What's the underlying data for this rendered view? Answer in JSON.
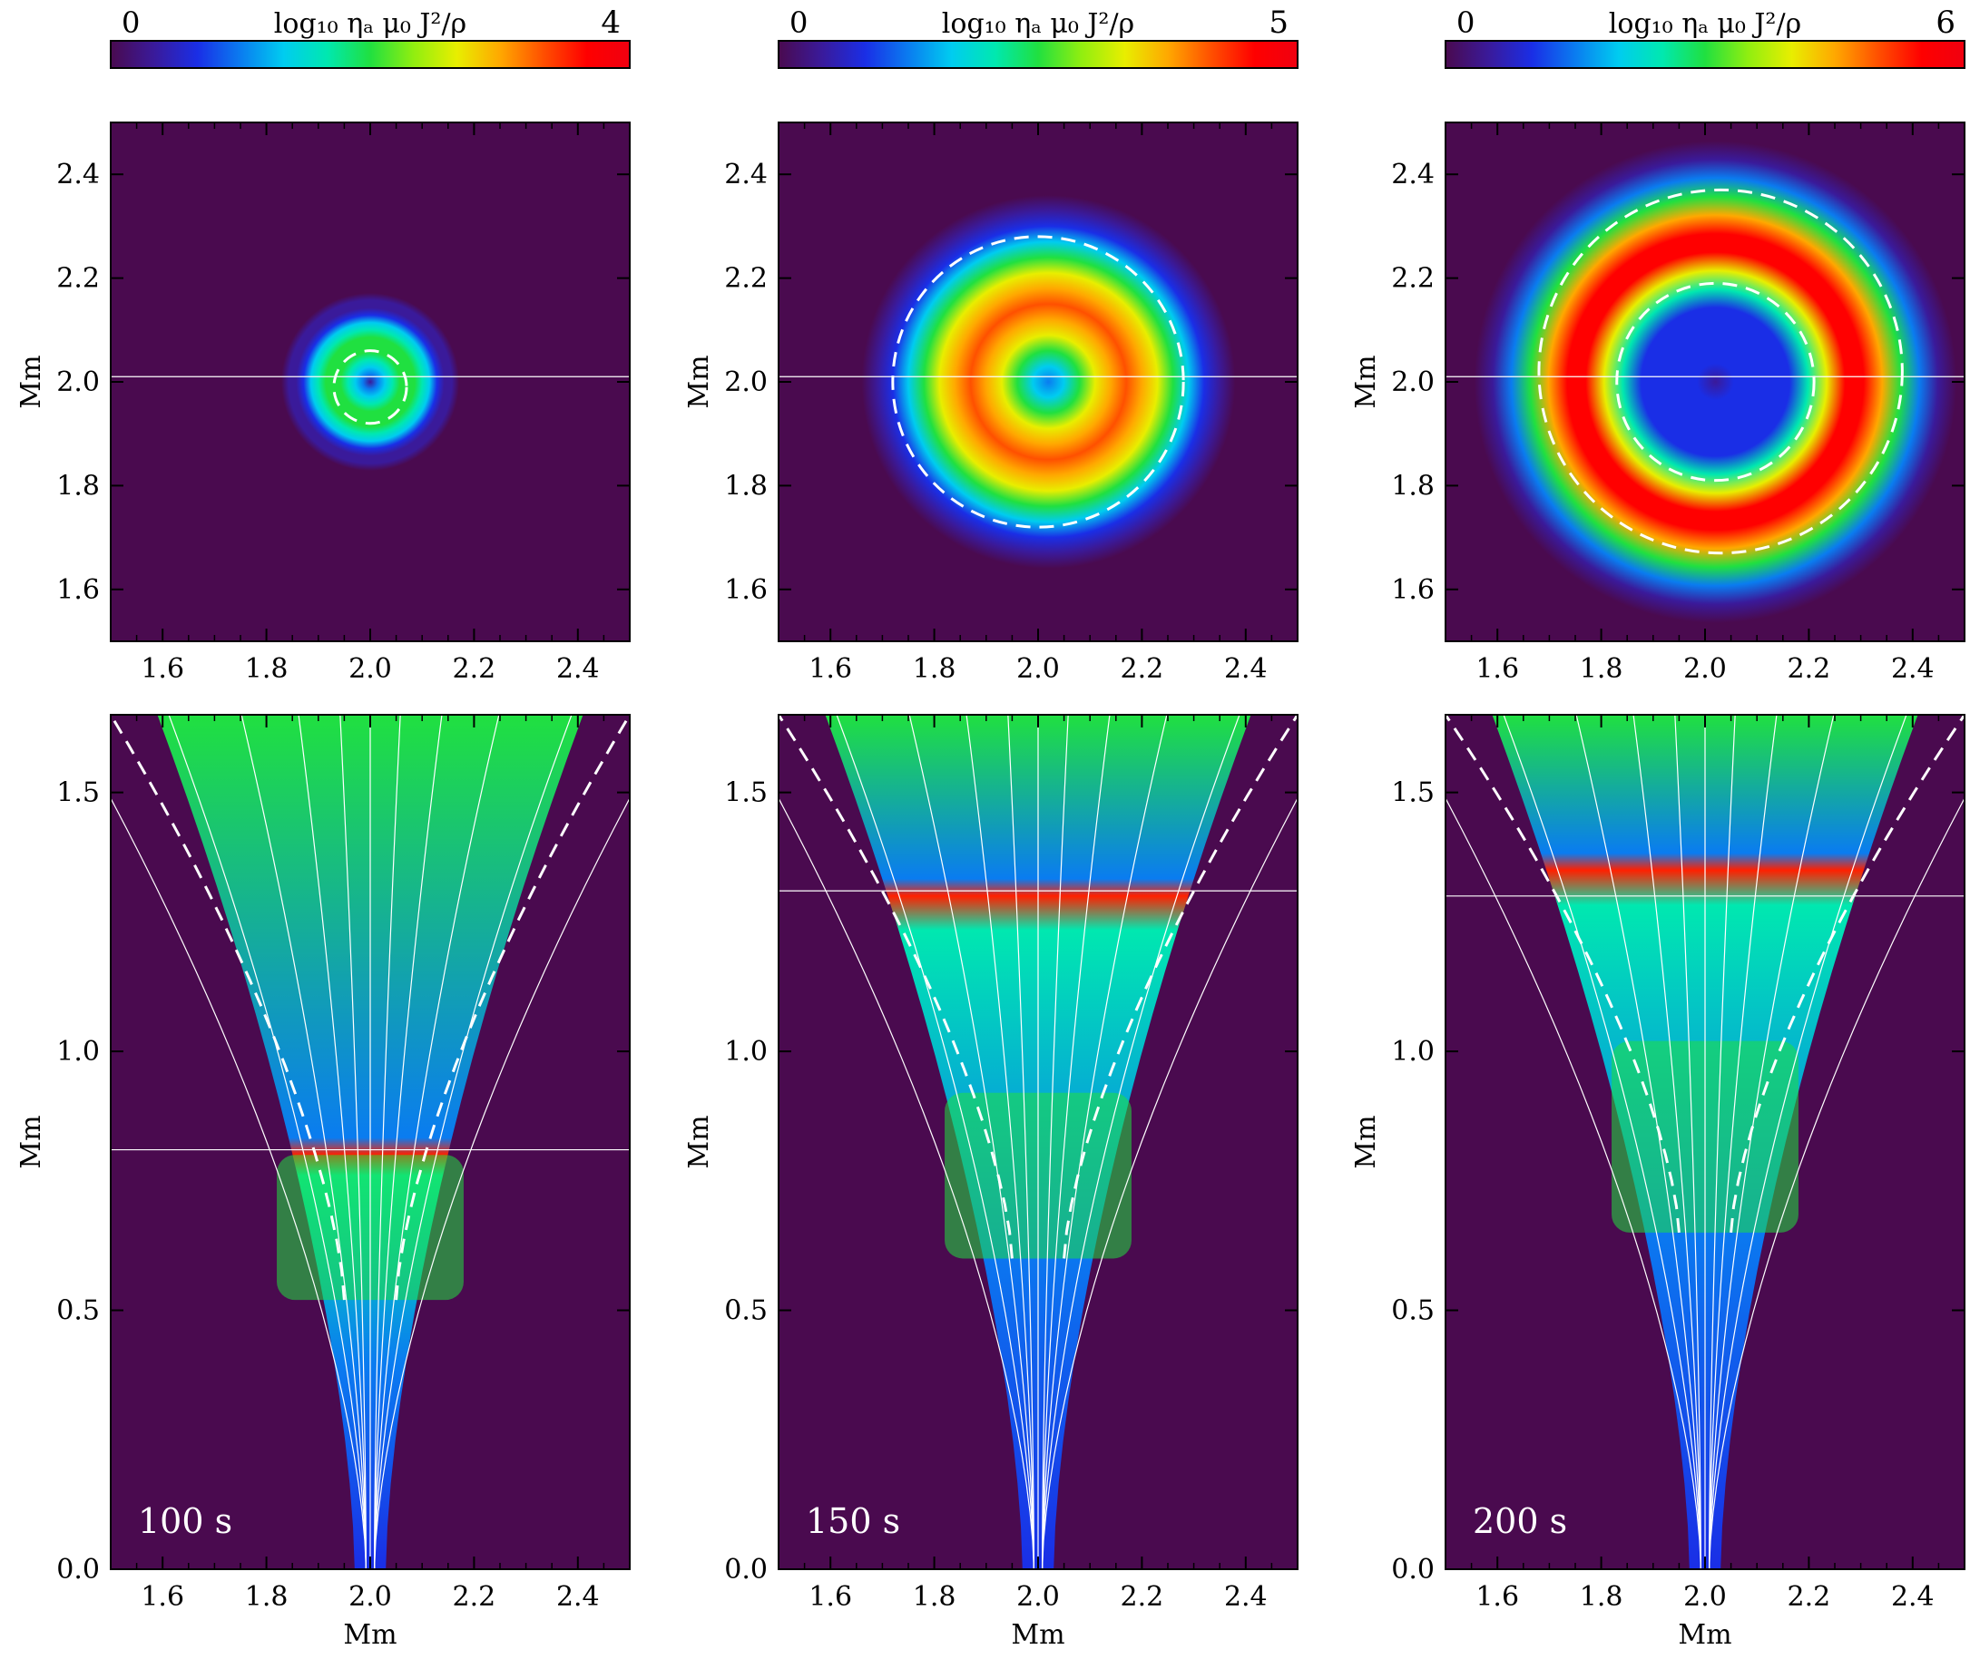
{
  "figure": {
    "colormap": [
      "#4a0a4f",
      "#3a1a9a",
      "#1a2ee6",
      "#0a7cf0",
      "#00ccf0",
      "#00e8b0",
      "#20e040",
      "#90ee10",
      "#e8ee00",
      "#ffa800",
      "#ff5000",
      "#ff0000",
      "#f00010"
    ]
  },
  "chart_data": [
    {
      "type": "heatmap",
      "panel": "top-1",
      "time": "100 s",
      "colorbar": {
        "label": "log₁₀ ηₐ μ₀ J²/ρ",
        "min": "0",
        "max": "4",
        "range": [
          0,
          4
        ]
      },
      "xlabel": "",
      "ylabel": "Mm",
      "xlim": [
        1.5,
        2.5
      ],
      "ylim": [
        1.5,
        2.5
      ],
      "xticks": [
        "1.6",
        "1.8",
        "2.0",
        "2.2",
        "2.4"
      ],
      "yticks": [
        "1.6",
        "1.8",
        "2.0",
        "2.2",
        "2.4"
      ],
      "ticks_x_axis_position": "top",
      "ring": {
        "center": [
          2.0,
          2.0
        ],
        "inner_radius": 0.0,
        "outer_radius": 0.2,
        "peak_value": 2.2
      },
      "dashed_contours": [
        {
          "center": [
            2.0,
            1.99
          ],
          "radius": 0.07
        }
      ],
      "horizontal_line_y": 2.01
    },
    {
      "type": "heatmap",
      "panel": "top-2",
      "time": "150 s",
      "colorbar": {
        "label": "log₁₀ ηₐ μ₀ J²/ρ",
        "min": "0",
        "max": "5",
        "range": [
          0,
          5
        ]
      },
      "xlabel": "",
      "ylabel": "Mm",
      "xlim": [
        1.5,
        2.5
      ],
      "ylim": [
        1.5,
        2.5
      ],
      "xticks": [
        "1.6",
        "1.8",
        "2.0",
        "2.2",
        "2.4"
      ],
      "yticks": [
        "1.6",
        "1.8",
        "2.0",
        "2.2",
        "2.4"
      ],
      "ticks_x_axis_position": "top",
      "ring": {
        "center": [
          2.02,
          2.0
        ],
        "inner_radius": 0.0,
        "outer_radius": 0.42,
        "peak_value": 4.3
      },
      "dashed_contours": [
        {
          "center": [
            2.0,
            2.0
          ],
          "radius": 0.28
        }
      ],
      "horizontal_line_y": 2.01
    },
    {
      "type": "heatmap",
      "panel": "top-3",
      "time": "200 s",
      "colorbar": {
        "label": "log₁₀ ηₐ μ₀ J²/ρ",
        "min": "0",
        "max": "6",
        "range": [
          0,
          6
        ]
      },
      "xlabel": "",
      "ylabel": "Mm",
      "xlim": [
        1.5,
        2.5
      ],
      "ylim": [
        1.5,
        2.5
      ],
      "xticks": [
        "1.6",
        "1.8",
        "2.0",
        "2.2",
        "2.4"
      ],
      "yticks": [
        "1.6",
        "1.8",
        "2.0",
        "2.2",
        "2.4"
      ],
      "ticks_x_axis_position": "top",
      "ring": {
        "center": [
          2.02,
          2.0
        ],
        "inner_radius": 0.15,
        "outer_radius": 0.5,
        "peak_value": 5.8
      },
      "dashed_contours": [
        {
          "center": [
            2.03,
            2.02
          ],
          "radius": 0.35
        },
        {
          "center": [
            2.02,
            2.0
          ],
          "radius": 0.19
        }
      ],
      "horizontal_line_y": 2.01
    },
    {
      "type": "heatmap",
      "panel": "bottom-1",
      "time": "100 s",
      "xlabel": "Mm",
      "ylabel": "Mm",
      "xlim": [
        1.5,
        2.5
      ],
      "ylim": [
        0.0,
        1.65
      ],
      "xticks": [
        "1.6",
        "1.8",
        "2.0",
        "2.2",
        "2.4"
      ],
      "yticks": [
        "0.0",
        "0.5",
        "1.0",
        "1.5"
      ],
      "front_height": 0.8,
      "dense_core": [
        0.52,
        0.8
      ],
      "horizontal_line_y": 0.81,
      "field_line_spreads": [
        -0.58,
        -0.38,
        -0.24,
        -0.13,
        -0.05,
        0.05,
        0.13,
        0.24,
        0.38,
        0.58
      ]
    },
    {
      "type": "heatmap",
      "panel": "bottom-2",
      "time": "150 s",
      "xlabel": "Mm",
      "ylabel": "Mm",
      "xlim": [
        1.5,
        2.5
      ],
      "ylim": [
        0.0,
        1.65
      ],
      "xticks": [
        "1.6",
        "1.8",
        "2.0",
        "2.2",
        "2.4"
      ],
      "yticks": [
        "0.0",
        "0.5",
        "1.0",
        "1.5"
      ],
      "front_height": 1.3,
      "dense_core": [
        0.6,
        0.92
      ],
      "horizontal_line_y": 1.31,
      "field_line_spreads": [
        -0.58,
        -0.38,
        -0.24,
        -0.13,
        -0.05,
        0.05,
        0.13,
        0.24,
        0.38,
        0.58
      ]
    },
    {
      "type": "heatmap",
      "panel": "bottom-3",
      "time": "200 s",
      "xlabel": "Mm",
      "ylabel": "Mm",
      "xlim": [
        1.5,
        2.5
      ],
      "ylim": [
        0.0,
        1.65
      ],
      "xticks": [
        "1.6",
        "1.8",
        "2.0",
        "2.2",
        "2.4"
      ],
      "yticks": [
        "0.0",
        "0.5",
        "1.0",
        "1.5"
      ],
      "front_height": 1.35,
      "dense_core": [
        0.65,
        1.02
      ],
      "horizontal_line_y": 1.3,
      "field_line_spreads": [
        -0.58,
        -0.38,
        -0.24,
        -0.13,
        -0.05,
        0.05,
        0.13,
        0.24,
        0.38,
        0.58
      ]
    }
  ]
}
